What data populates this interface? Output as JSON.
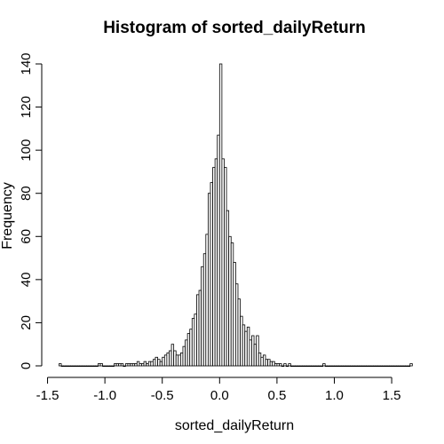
{
  "chart_data": {
    "type": "bar",
    "title": "Histogram of sorted_dailyReturn",
    "xlabel": "sorted_dailyReturn",
    "ylabel": "Frequency",
    "xlim": [
      -1.45,
      1.6
    ],
    "ylim": [
      0,
      140
    ],
    "xticks": [
      -1.5,
      -1.0,
      -0.5,
      0.0,
      0.5,
      1.0,
      1.5
    ],
    "xtick_labels": [
      "-1.5",
      "-1.0",
      "-0.5",
      "0.0",
      "0.5",
      "1.0",
      "1.5"
    ],
    "yticks": [
      0,
      20,
      40,
      60,
      80,
      100,
      120,
      140
    ],
    "ytick_labels": [
      "0",
      "20",
      "40",
      "60",
      "80",
      "100",
      "120",
      "140"
    ],
    "bin_start": -1.4,
    "bin_width": 0.02,
    "grid": false,
    "values": [
      1,
      0,
      0,
      0,
      0,
      0,
      0,
      0,
      0,
      0,
      0,
      0,
      0,
      0,
      0,
      0,
      0,
      1,
      1,
      0,
      0,
      0,
      0,
      0,
      1,
      1,
      1,
      1,
      0,
      1,
      1,
      1,
      1,
      1,
      2,
      1,
      1,
      2,
      1,
      2,
      2,
      3,
      4,
      3,
      2,
      4,
      5,
      6,
      7,
      10,
      7,
      5,
      5,
      6,
      9,
      12,
      15,
      17,
      22,
      24,
      33,
      35,
      46,
      52,
      61,
      80,
      85,
      92,
      96,
      107,
      140,
      96,
      92,
      72,
      60,
      57,
      48,
      38,
      31,
      23,
      19,
      16,
      18,
      12,
      14,
      10,
      14,
      6,
      4,
      5,
      3,
      3,
      2,
      2,
      1,
      1,
      1,
      0,
      1,
      0,
      1,
      0,
      0,
      0,
      0,
      0,
      0,
      0,
      0,
      0,
      0,
      0,
      0,
      0,
      0,
      1,
      0,
      0,
      0,
      0,
      0,
      0,
      0,
      0,
      0,
      0,
      0,
      0,
      0,
      0,
      0,
      0,
      0,
      0,
      0,
      0,
      0,
      0,
      0,
      0,
      0,
      0,
      0,
      0,
      0,
      0,
      0,
      0,
      0,
      0,
      0,
      0,
      0,
      1
    ]
  }
}
